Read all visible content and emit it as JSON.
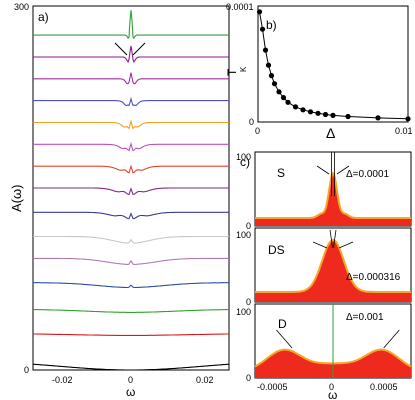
{
  "chart_data": [
    {
      "panel": "a)",
      "type": "line",
      "ylabel": "A(ω)",
      "xlabel": "ω",
      "xlim": [
        -0.027,
        0.027
      ],
      "ylim": [
        0,
        300
      ],
      "yticks": [
        "0",
        "300"
      ],
      "xticks": [
        "-0.02",
        "0",
        "0.02"
      ],
      "grid": false,
      "series": [
        {
          "color": "#000000",
          "offset": 0,
          "dip": 0.0,
          "width": 0.02,
          "spike": 0
        },
        {
          "color": "#d7191c",
          "offset": 20,
          "dip": 0.15,
          "width": 0.0155,
          "spike": 0
        },
        {
          "color": "#33a02c",
          "offset": 40,
          "dip": 0.25,
          "width": 0.012,
          "spike": 0
        },
        {
          "color": "#2c4fa3",
          "offset": 62,
          "dip": 0.4,
          "width": 0.009,
          "spike": 2
        },
        {
          "color": "#b07ab0",
          "offset": 82,
          "dip": 0.5,
          "width": 0.0065,
          "spike": 3
        },
        {
          "color": "#c8c8c8",
          "offset": 100,
          "dip": 0.55,
          "width": 0.005,
          "spike": 3
        },
        {
          "color": "#3b3b98",
          "offset": 120,
          "dip": 0.65,
          "width": 0.004,
          "spike": 5
        },
        {
          "color": "#7b2d8b",
          "offset": 140,
          "dip": 0.7,
          "width": 0.0032,
          "spike": 6
        },
        {
          "color": "#e0442a",
          "offset": 158,
          "dip": 0.75,
          "width": 0.0026,
          "spike": 7
        },
        {
          "color": "#c050c0",
          "offset": 176,
          "dip": 0.8,
          "width": 0.002,
          "spike": 8
        },
        {
          "color": "#f0a020",
          "offset": 194,
          "dip": 0.85,
          "width": 0.0016,
          "spike": 9
        },
        {
          "color": "#5050c8",
          "offset": 212,
          "dip": 0.9,
          "width": 0.0012,
          "spike": 10
        },
        {
          "color": "#a030a0",
          "offset": 230,
          "dip": 0.95,
          "width": 0.0009,
          "spike": 14
        },
        {
          "color": "#8b1a8b",
          "offset": 248,
          "dip": 0.95,
          "width": 0.0007,
          "spike": 18
        },
        {
          "color": "#2ca02c",
          "offset": 266,
          "dip": 1.0,
          "width": 0.0005,
          "spike": 30
        }
      ]
    },
    {
      "panel": "b)",
      "type": "line",
      "ylabel": "T",
      "ylabel_sub": "K",
      "xlabel": "Δ",
      "xlim": [
        0,
        0.01
      ],
      "ylim": [
        0,
        0.0001
      ],
      "yticks": [
        "0",
        "0.0001"
      ],
      "xticks": [
        "0",
        "0.01"
      ],
      "x": [
        0.0001,
        0.0003,
        0.0005,
        0.0007,
        0.0009,
        0.0011,
        0.0014,
        0.0017,
        0.002,
        0.0025,
        0.003,
        0.0035,
        0.004,
        0.0045,
        0.005,
        0.006,
        0.008,
        0.01
      ],
      "y": [
        9.5e-05,
        8e-05,
        6.2e-05,
        4.9e-05,
        4e-05,
        3.3e-05,
        2.6e-05,
        2.1e-05,
        1.7e-05,
        1.3e-05,
        1.05e-05,
        8.8e-06,
        7.5e-06,
        6.5e-06,
        5.7e-06,
        4.7e-06,
        3.5e-06,
        2.8e-06
      ]
    },
    {
      "panel": "c)",
      "type": "area",
      "xlabel": "ω",
      "xticks": [
        "-0.0005",
        "0",
        "0.0005"
      ],
      "xlim": [
        -0.0008,
        0.0008
      ],
      "subpanels": [
        {
          "name": "S",
          "delta_label": "Δ=0.0001",
          "yticks": [
            "100",
            "0"
          ],
          "shape": "single-peak"
        },
        {
          "name": "DS",
          "delta_label": "Δ=0.000316",
          "yticks": [
            "100",
            "0"
          ],
          "shape": "broad-peak"
        },
        {
          "name": "D",
          "delta_label": "Δ=0.001",
          "yticks": [
            "100",
            "0"
          ],
          "shape": "double-peak"
        }
      ],
      "fill_color": "#ee2a1e",
      "edge_color": "#f5a623",
      "center_line_color": "#2ca02c"
    }
  ]
}
